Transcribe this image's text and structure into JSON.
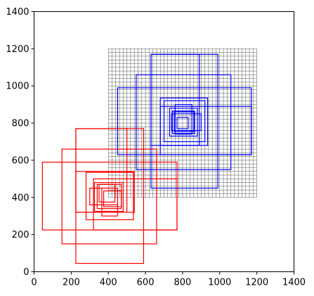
{
  "chart_data": {
    "type": "rectangles",
    "xlim": [
      0,
      1400
    ],
    "ylim": [
      0,
      1400
    ],
    "xticks": [
      0,
      200,
      400,
      600,
      800,
      1000,
      1200,
      1400
    ],
    "yticks": [
      0,
      200,
      400,
      600,
      800,
      1000,
      1200,
      1400
    ],
    "tick_labels_x": [
      "0",
      "200",
      "400",
      "600",
      "800",
      "1000",
      "1200",
      "1400"
    ],
    "tick_labels_y": [
      "0",
      "200",
      "400",
      "600",
      "800",
      "1000",
      "1200",
      "1400"
    ],
    "grid_region": {
      "x0": 400,
      "y0": 400,
      "x1": 1200,
      "y1": 1200,
      "spacing": 20,
      "color": "#555555"
    },
    "series": [
      {
        "color": "#ff0000",
        "rects": [
          [
            225,
            45,
            590,
            770
          ],
          [
            150,
            150,
            660,
            660
          ],
          [
            45,
            225,
            770,
            590
          ],
          [
            225,
            320,
            500,
            770
          ],
          [
            320,
            225,
            770,
            500
          ],
          [
            280,
            280,
            535,
            535
          ],
          [
            225,
            320,
            540,
            540
          ],
          [
            300,
            360,
            450,
            450
          ],
          [
            365,
            300,
            450,
            450
          ],
          [
            340,
            340,
            470,
            470
          ],
          [
            350,
            375,
            435,
            470
          ],
          [
            375,
            350,
            470,
            435
          ],
          [
            325,
            325,
            480,
            480
          ]
        ]
      },
      {
        "color": "#0000ff",
        "rects": [
          [
            630,
            450,
            990,
            1170
          ],
          [
            550,
            550,
            1060,
            1060
          ],
          [
            450,
            630,
            1170,
            990
          ],
          [
            630,
            680,
            890,
            1170
          ],
          [
            680,
            630,
            1170,
            890
          ],
          [
            680,
            680,
            935,
            935
          ],
          [
            700,
            700,
            920,
            920
          ],
          [
            730,
            730,
            880,
            880
          ],
          [
            745,
            745,
            865,
            865
          ],
          [
            755,
            755,
            860,
            860
          ],
          [
            740,
            760,
            900,
            850
          ],
          [
            760,
            740,
            850,
            900
          ],
          [
            770,
            770,
            830,
            830
          ]
        ]
      }
    ]
  }
}
